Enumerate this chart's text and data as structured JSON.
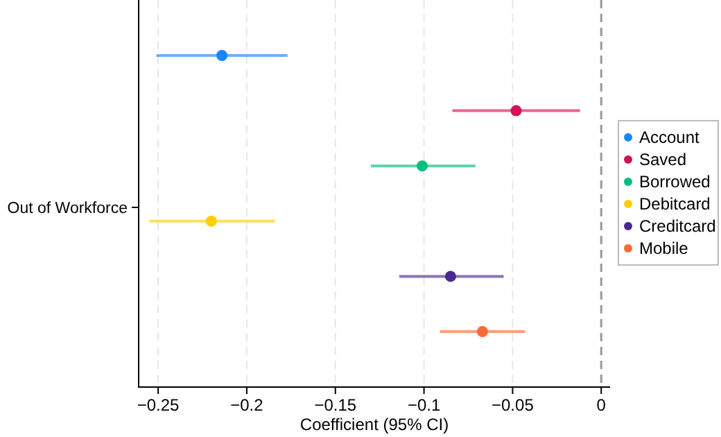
{
  "chart_data": {
    "type": "scatter",
    "orientation": "horizontal",
    "xlabel": "Coefficient (95% CI)",
    "ylabel": "Out of Workforce",
    "categories": [
      null,
      null,
      null,
      null,
      null,
      null
    ],
    "series": [
      {
        "name": "Account",
        "color": "#1a85ff",
        "values": [
          -0.214,
          null,
          null,
          null,
          null,
          null
        ],
        "errors": [
          [
            -0.251,
            -0.177
          ],
          null,
          null,
          null,
          null,
          null
        ]
      },
      {
        "name": "Saved",
        "color": "#d41159",
        "values": [
          null,
          -0.048,
          null,
          null,
          null,
          null
        ],
        "errors": [
          null,
          [
            -0.084,
            -0.012
          ],
          null,
          null,
          null,
          null
        ]
      },
      {
        "name": "Borrowed",
        "color": "#00bf7d",
        "values": [
          null,
          null,
          -0.101,
          null,
          null,
          null
        ],
        "errors": [
          null,
          null,
          [
            -0.13,
            -0.071
          ],
          null,
          null,
          null
        ]
      },
      {
        "name": "Debitcard",
        "color": "#ffcf00",
        "values": [
          null,
          null,
          null,
          -0.22,
          null,
          null
        ],
        "errors": [
          null,
          null,
          null,
          [
            -0.255,
            -0.184
          ],
          null,
          null
        ]
      },
      {
        "name": "Creditcard",
        "color": "#4b2991",
        "values": [
          null,
          null,
          null,
          null,
          -0.085,
          null
        ],
        "errors": [
          null,
          null,
          null,
          null,
          [
            -0.114,
            -0.055
          ],
          null
        ]
      },
      {
        "name": "Mobile",
        "color": "#ff6a33",
        "values": [
          null,
          null,
          null,
          null,
          null,
          -0.067
        ],
        "errors": [
          null,
          null,
          null,
          null,
          null,
          [
            -0.091,
            -0.043
          ]
        ]
      }
    ],
    "xlim": [
      -0.261,
      0.005
    ],
    "xticks": [
      {
        "value": -0.25,
        "label": "−0.25"
      },
      {
        "value": -0.2,
        "label": "−0.2"
      },
      {
        "value": -0.15,
        "label": "−0.15"
      },
      {
        "value": -0.1,
        "label": "−0.1"
      },
      {
        "value": -0.05,
        "label": "−0.05"
      },
      0
    ],
    "ref_lines": [
      {
        "axis": "x",
        "value": 0,
        "label": null,
        "color": "#999999",
        "line_style": "dashed"
      }
    ],
    "grid": "x",
    "legend": "right",
    "marker": "circle"
  }
}
